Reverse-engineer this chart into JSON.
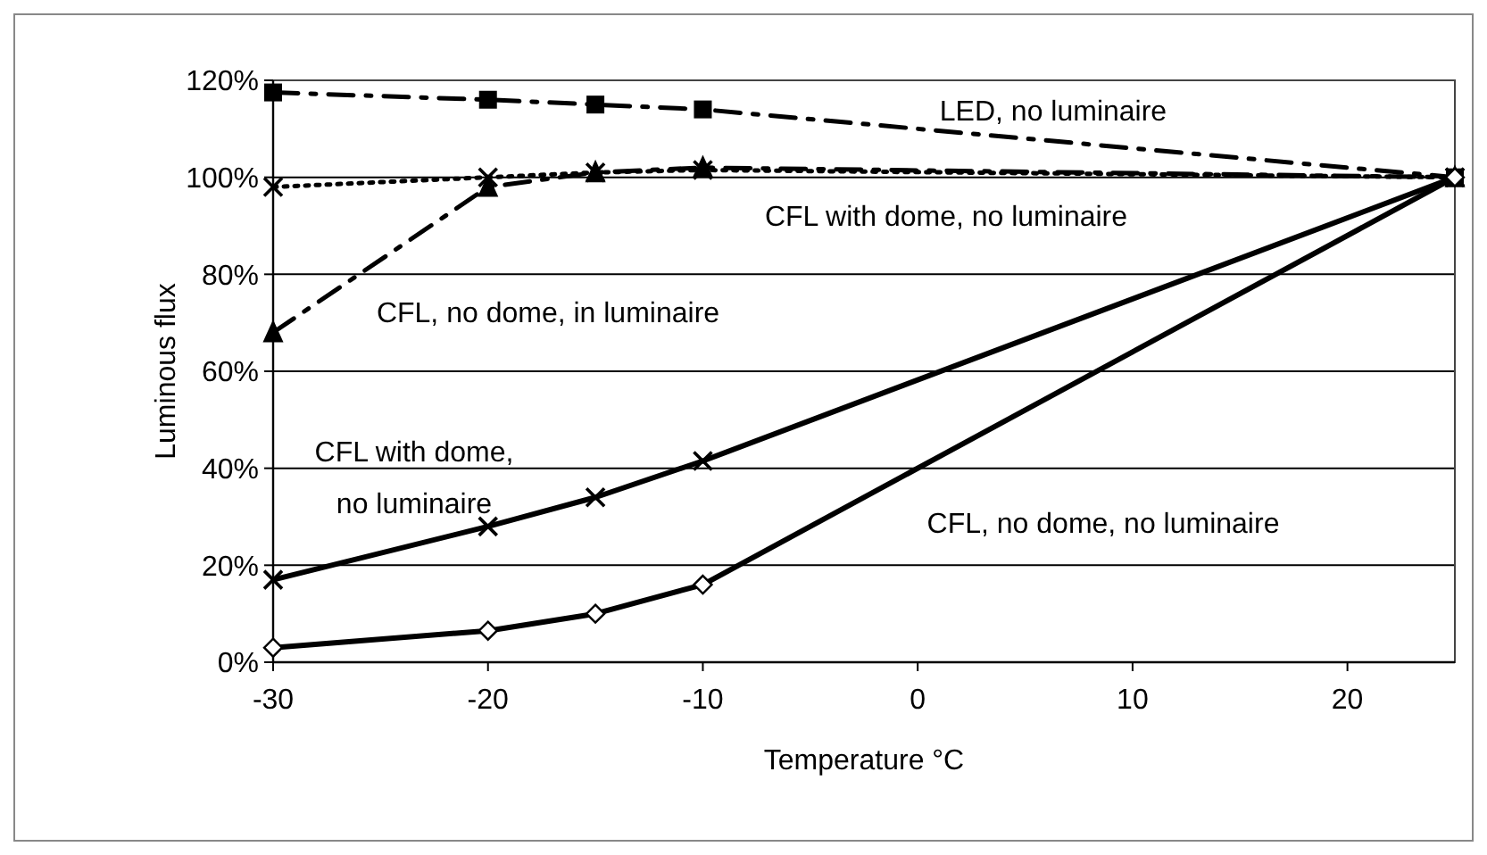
{
  "chart_data": {
    "type": "line",
    "xlabel": "Temperature °C",
    "ylabel": "Luminous flux",
    "xlim": [
      -30,
      25
    ],
    "xticks": [
      -30,
      -20,
      -10,
      0,
      10,
      20
    ],
    "ylim": [
      0,
      120
    ],
    "yticks": [
      {
        "value": 0,
        "label": "0%"
      },
      {
        "value": 20,
        "label": "20%"
      },
      {
        "value": 40,
        "label": "40%"
      },
      {
        "value": 60,
        "label": "60%"
      },
      {
        "value": 80,
        "label": "80%"
      },
      {
        "value": 100,
        "label": "100%"
      },
      {
        "value": 120,
        "label": "120%"
      }
    ],
    "grid": "y",
    "series": [
      {
        "name": "LED, no luminaire",
        "color": "#000000",
        "marker": "square",
        "line_style": "dashed",
        "x": [
          -30,
          -20,
          -15,
          -10,
          25
        ],
        "values": [
          117.5,
          116,
          115,
          114,
          100
        ]
      },
      {
        "name": "CFL with dome, no luminaire",
        "color": "#000000",
        "marker": "cross",
        "line_style": "dotted",
        "x": [
          -30,
          -20,
          -15,
          -10,
          25
        ],
        "values": [
          98,
          100,
          101,
          101.5,
          100
        ]
      },
      {
        "name": "CFL, no dome, in luminaire",
        "color": "#000000",
        "marker": "triangle",
        "line_style": "dashed",
        "x": [
          -30,
          -20,
          -15,
          -10,
          25
        ],
        "values": [
          68,
          98,
          101,
          102,
          100
        ]
      },
      {
        "name": "CFL with dome,\nno luminaire",
        "color": "#000000",
        "marker": "cross",
        "line_style": "solid",
        "x": [
          -30,
          -20,
          -15,
          -10,
          25
        ],
        "values": [
          17,
          28,
          34,
          41.5,
          100
        ]
      },
      {
        "name": "CFL, no dome, no luminaire",
        "color": "#000000",
        "marker": "diamond",
        "line_style": "solid",
        "x": [
          -30,
          -20,
          -15,
          -10,
          25
        ],
        "values": [
          3,
          6.5,
          10,
          16,
          100
        ]
      }
    ]
  }
}
